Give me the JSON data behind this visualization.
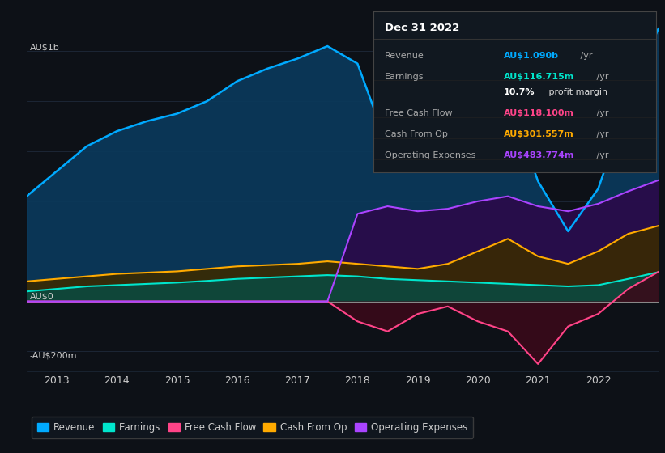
{
  "bg_color": "#0d1117",
  "plot_bg_color": "#0d1117",
  "ylabel_top": "AU$1b",
  "ylabel_bottom": "-AU$200m",
  "ylabel_zero": "AU$0",
  "years": [
    2012.5,
    2013,
    2013.5,
    2014,
    2014.5,
    2015,
    2015.5,
    2016,
    2016.5,
    2017,
    2017.5,
    2018,
    2018.5,
    2019,
    2019.5,
    2020,
    2020.5,
    2021,
    2021.5,
    2022,
    2022.5,
    2023
  ],
  "revenue": [
    0.42,
    0.52,
    0.62,
    0.68,
    0.72,
    0.75,
    0.8,
    0.88,
    0.93,
    0.97,
    1.02,
    0.95,
    0.62,
    0.65,
    0.68,
    0.78,
    0.82,
    0.48,
    0.28,
    0.45,
    0.8,
    1.09
  ],
  "earnings": [
    0.04,
    0.05,
    0.06,
    0.065,
    0.07,
    0.075,
    0.082,
    0.09,
    0.095,
    0.1,
    0.105,
    0.1,
    0.09,
    0.085,
    0.08,
    0.075,
    0.07,
    0.065,
    0.06,
    0.065,
    0.09,
    0.117
  ],
  "free_cash_flow": [
    0.0,
    0.0,
    0.0,
    0.0,
    0.0,
    0.0,
    0.0,
    0.0,
    0.0,
    0.0,
    0.0,
    -0.08,
    -0.12,
    -0.05,
    -0.02,
    -0.08,
    -0.12,
    -0.25,
    -0.1,
    -0.05,
    0.05,
    0.118
  ],
  "cash_from_op": [
    0.08,
    0.09,
    0.1,
    0.11,
    0.115,
    0.12,
    0.13,
    0.14,
    0.145,
    0.15,
    0.16,
    0.15,
    0.14,
    0.13,
    0.15,
    0.2,
    0.25,
    0.18,
    0.15,
    0.2,
    0.27,
    0.302
  ],
  "operating_expenses": [
    0.0,
    0.0,
    0.0,
    0.0,
    0.0,
    0.0,
    0.0,
    0.0,
    0.0,
    0.0,
    0.0,
    0.35,
    0.38,
    0.36,
    0.37,
    0.4,
    0.42,
    0.38,
    0.36,
    0.39,
    0.44,
    0.484
  ],
  "colors": {
    "revenue": "#00aaff",
    "revenue_fill": "#0a3a5c",
    "earnings": "#00e5cc",
    "earnings_fill": "#0a4a40",
    "free_cash_flow": "#ff4488",
    "free_cash_flow_fill": "#3a0a1a",
    "cash_from_op": "#ffaa00",
    "cash_from_op_fill": "#3a2a00",
    "operating_expenses": "#aa44ff",
    "operating_expenses_fill": "#2a0a4a"
  },
  "xticks": [
    2013,
    2014,
    2015,
    2016,
    2017,
    2018,
    2019,
    2020,
    2021,
    2022
  ],
  "ylim": [
    -0.28,
    1.15
  ],
  "grid_color": "#1e2a3a",
  "text_color": "#cccccc",
  "legend_items": [
    "Revenue",
    "Earnings",
    "Free Cash Flow",
    "Cash From Op",
    "Operating Expenses"
  ],
  "legend_colors": [
    "#00aaff",
    "#00e5cc",
    "#ff4488",
    "#ffaa00",
    "#aa44ff"
  ],
  "info_box": {
    "title": "Dec 31 2022",
    "rows": [
      {
        "label": "Revenue",
        "value": "AU$1.090b",
        "unit": " /yr",
        "value_color": "#00aaff"
      },
      {
        "label": "Earnings",
        "value": "AU$116.715m",
        "unit": " /yr",
        "value_color": "#00e5cc"
      },
      {
        "label": "",
        "value": "10.7%",
        "unit": " profit margin",
        "value_color": "#ffffff",
        "bold": true
      },
      {
        "label": "Free Cash Flow",
        "value": "AU$118.100m",
        "unit": " /yr",
        "value_color": "#ff4488"
      },
      {
        "label": "Cash From Op",
        "value": "AU$301.557m",
        "unit": " /yr",
        "value_color": "#ffaa00"
      },
      {
        "label": "Operating Expenses",
        "value": "AU$483.774m",
        "unit": " /yr",
        "value_color": "#aa44ff"
      }
    ]
  }
}
